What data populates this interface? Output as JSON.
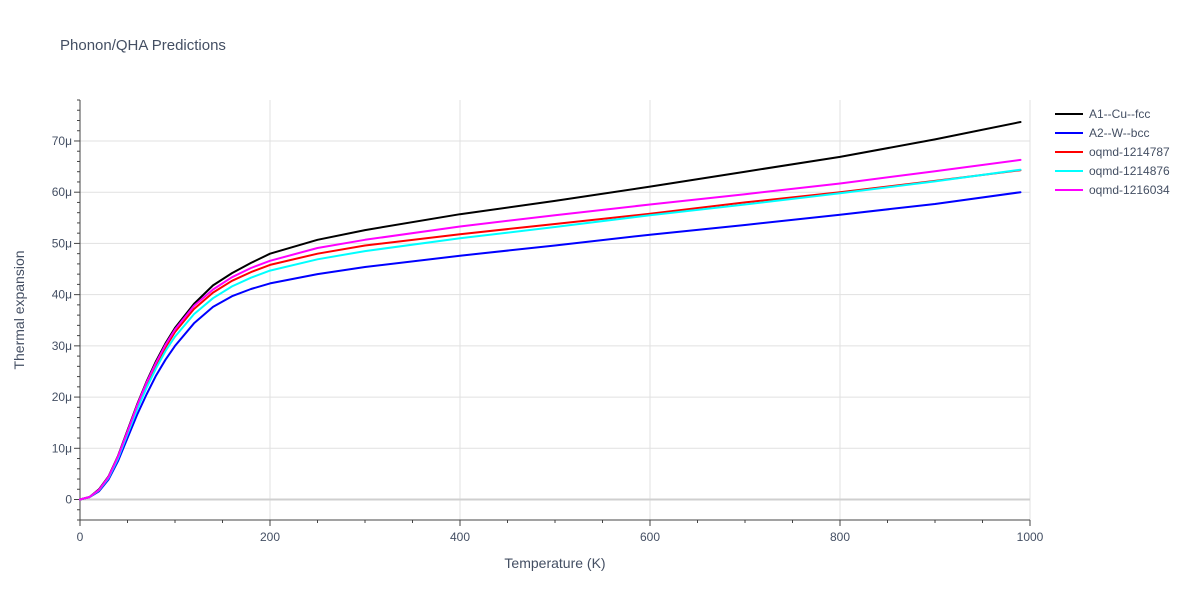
{
  "chart_data": {
    "type": "line",
    "title": "Phonon/QHA Predictions",
    "xlabel": "Temperature (K)",
    "ylabel": "Thermal expansion",
    "xlim": [
      0,
      1000
    ],
    "ylim": [
      -4,
      78
    ],
    "x_ticks": [
      0,
      200,
      400,
      600,
      800,
      1000
    ],
    "x_tick_labels": [
      "0",
      "200",
      "400",
      "600",
      "800",
      "1000"
    ],
    "y_ticks": [
      0,
      10,
      20,
      30,
      40,
      50,
      60,
      70
    ],
    "y_tick_labels": [
      "0",
      "10μ",
      "20μ",
      "30μ",
      "40μ",
      "50μ",
      "60μ",
      "70μ"
    ],
    "grid": true,
    "legend_position": "top-right",
    "x": [
      0,
      10,
      20,
      30,
      40,
      50,
      60,
      70,
      80,
      90,
      100,
      120,
      140,
      160,
      180,
      200,
      250,
      300,
      400,
      500,
      600,
      700,
      800,
      900,
      990
    ],
    "series": [
      {
        "name": "A1--Cu--fcc",
        "color": "#000000",
        "values": [
          0,
          0.5,
          2,
          4.5,
          8.5,
          13.5,
          18.5,
          23,
          27,
          30.5,
          33.5,
          38.2,
          41.8,
          44.2,
          46.2,
          48,
          50.7,
          52.6,
          55.7,
          58.3,
          61.1,
          64.0,
          66.9,
          70.3,
          73.7
        ]
      },
      {
        "name": "A2--W--bcc",
        "color": "#0000ff",
        "values": [
          0,
          0.45,
          1.6,
          3.9,
          7.5,
          12,
          16.5,
          20.5,
          24.2,
          27.3,
          30,
          34.4,
          37.6,
          39.7,
          41.1,
          42.2,
          44.0,
          45.4,
          47.6,
          49.6,
          51.7,
          53.6,
          55.6,
          57.7,
          60
        ]
      },
      {
        "name": "oqmd-1214787",
        "color": "#ff0000",
        "values": [
          0,
          0.5,
          1.8,
          4.3,
          8.2,
          13,
          17.9,
          22.3,
          26.2,
          29.7,
          32.7,
          37.2,
          40.4,
          42.7,
          44.4,
          45.8,
          48.0,
          49.6,
          51.8,
          53.8,
          55.8,
          58.0,
          60.0,
          62.2,
          64.3
        ]
      },
      {
        "name": "oqmd-1214876",
        "color": "#00ffff",
        "values": [
          0,
          0.5,
          1.8,
          4.2,
          8,
          12.8,
          17.5,
          21.8,
          25.6,
          29,
          31.8,
          36.2,
          39.3,
          41.6,
          43.3,
          44.7,
          46.9,
          48.5,
          51.0,
          53.2,
          55.5,
          57.6,
          59.8,
          62.1,
          64.4
        ]
      },
      {
        "name": "oqmd-1216034",
        "color": "#ff00ff",
        "values": [
          0,
          0.5,
          1.9,
          4.4,
          8.4,
          13.3,
          18.3,
          22.8,
          26.7,
          30.2,
          33.2,
          37.8,
          41.0,
          43.4,
          45.2,
          46.6,
          49.1,
          50.7,
          53.3,
          55.5,
          57.6,
          59.6,
          61.7,
          64.1,
          66.3
        ]
      }
    ]
  }
}
